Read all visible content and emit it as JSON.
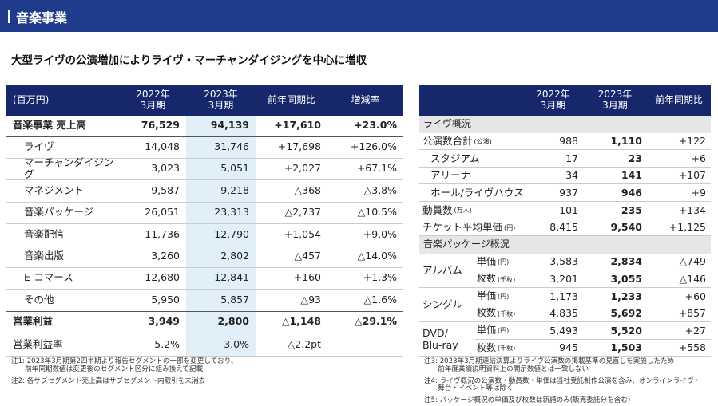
{
  "header": {
    "title": "音楽事業"
  },
  "subtitle": "大型ライヴの公演増加によりライヴ・マーチャンダイジングを中心に増収",
  "left_table": {
    "header": [
      "(百万円)",
      "2022年\n3月期",
      "2023年\n3月期",
      "前年同期比",
      "増減率"
    ],
    "rows": [
      [
        "音楽事業 売上高",
        "76,529",
        "94,139",
        "+17,610",
        "+23.0%"
      ],
      [
        "ライヴ",
        "14,048",
        "31,746",
        "+17,698",
        "+126.0%"
      ],
      [
        "マーチャンダイジング",
        "3,023",
        "5,051",
        "+2,027",
        "+67.1%"
      ],
      [
        "マネジメント",
        "9,587",
        "9,218",
        "△368",
        "△3.8%"
      ],
      [
        "音楽パッケージ",
        "26,051",
        "23,313",
        "△2,737",
        "△10.5%"
      ],
      [
        "音楽配信",
        "11,736",
        "12,790",
        "+1,054",
        "+9.0%"
      ],
      [
        "音楽出版",
        "3,260",
        "2,802",
        "△457",
        "△14.0%"
      ],
      [
        "E-コマース",
        "12,680",
        "12,841",
        "+160",
        "+1.3%"
      ],
      [
        "その他",
        "5,950",
        "5,857",
        "△93",
        "△1.6%"
      ],
      [
        "営業利益",
        "3,949",
        "2,800",
        "△1,148",
        "△29.1%"
      ],
      [
        "営業利益率",
        "5.2%",
        "3.0%",
        "△2.2pt",
        "–"
      ]
    ]
  },
  "right_table": {
    "header": [
      "2022年\n3月期",
      "2023年\n3月期",
      "前年同期比"
    ],
    "sections": [
      {
        "title": "ライヴ概況",
        "rows": [
          {
            "label": "公演数合計",
            "unit": "(公演)",
            "values": [
              "988",
              "1,110",
              "+122"
            ]
          },
          {
            "label": "スタジアム",
            "values": [
              "17",
              "23",
              "+6"
            ]
          },
          {
            "label": "アリーナ",
            "values": [
              "34",
              "141",
              "+107"
            ]
          },
          {
            "label": "ホール/ライヴハウス",
            "values": [
              "937",
              "946",
              "+9"
            ]
          },
          {
            "label": "動員数",
            "unit": "(万人)",
            "values": [
              "101",
              "235",
              "+134"
            ]
          },
          {
            "label": "チケット平均単価",
            "unit": "(円)",
            "values": [
              "8,415",
              "9,540",
              "+1,125"
            ]
          }
        ]
      },
      {
        "title": "音楽パッケージ概況",
        "groups": [
          {
            "label": "アルバム",
            "rows": [
              {
                "label": "単価",
                "unit": "(円)",
                "values": [
                  "3,583",
                  "2,834",
                  "△749"
                ]
              },
              {
                "label": "枚数",
                "unit": "(千枚)",
                "values": [
                  "3,201",
                  "3,055",
                  "△146"
                ]
              }
            ]
          },
          {
            "label": "シングル",
            "rows": [
              {
                "label": "単価",
                "unit": "(円)",
                "values": [
                  "1,173",
                  "1,233",
                  "+60"
                ]
              },
              {
                "label": "枚数",
                "unit": "(千枚)",
                "values": [
                  "4,835",
                  "5,692",
                  "+857"
                ]
              }
            ]
          },
          {
            "label": "DVD/\nBlu-ray",
            "rows": [
              {
                "label": "単価",
                "unit": "(円)",
                "values": [
                  "5,493",
                  "5,520",
                  "+27"
                ]
              },
              {
                "label": "枚数",
                "unit": "(千枚)",
                "values": [
                  "945",
                  "1,503",
                  "+558"
                ]
              }
            ]
          }
        ]
      }
    ]
  },
  "notes_left": [
    "注1: 2023年3月期第2四半期より報告セグメントの一部を変更しており、\n　　前年同期数値は変更後のセグメント区分に組み換えて記載",
    "注2: 各サブセグメント売上高はサブセグメント内取引を未消去"
  ],
  "notes_right": [
    "注3: 2023年3月期連結決算よりライヴ公演数の掲載基準の見直しを実施したため\n　　前年度業績説明資料上の開示数値とは一致しない",
    "注4: ライヴ概況の公演数・動員数・単価は当社受託制作公演を含み、オンラインライヴ・\n　　舞台・イベント等は除く",
    "注5: パッケージ概況の単価及び枚数は新譜のみ(販売委託分を含む)"
  ]
}
